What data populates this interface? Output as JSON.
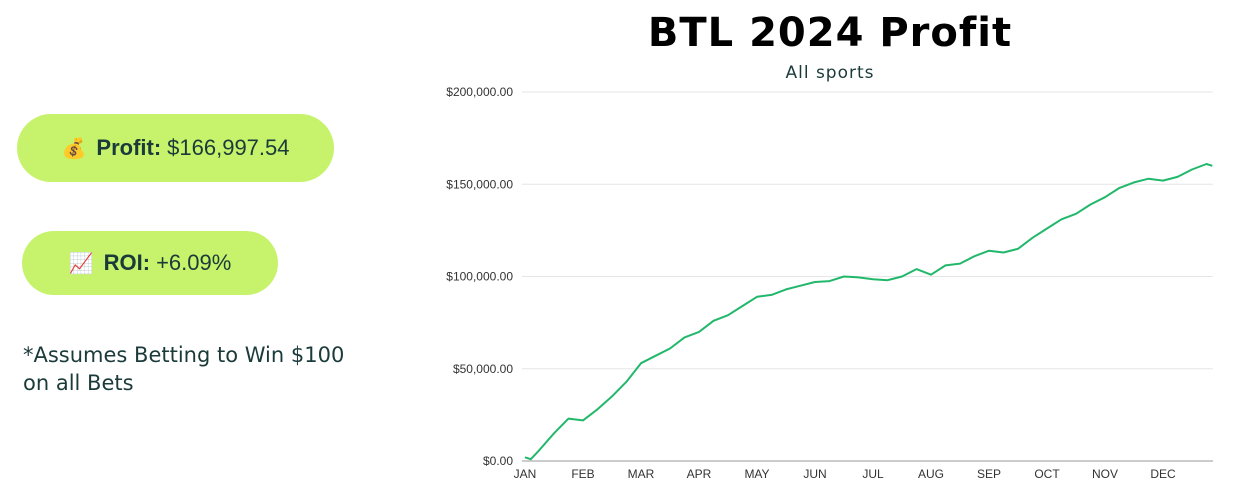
{
  "profit_pill": {
    "emoji": "💰",
    "label": "Profit:",
    "value": "$166,997.54"
  },
  "roi_pill": {
    "emoji": "📈",
    "label": "ROI:",
    "value": "+6.09%"
  },
  "note": "*Assumes Betting to Win $100 on all Bets",
  "colors": {
    "accent": "#c6f36b",
    "line": "#22b86b",
    "text": "#1b3a3a"
  },
  "chart_data": {
    "type": "line",
    "title": "BTL 2024 Profit",
    "subtitle": "All sports",
    "xlabel": "",
    "ylabel": "",
    "categories": [
      "JAN",
      "FEB",
      "MAR",
      "APR",
      "MAY",
      "JUN",
      "JUL",
      "AUG",
      "SEP",
      "OCT",
      "NOV",
      "DEC"
    ],
    "y_ticks": [
      "$0.00",
      "$50,000.00",
      "$100,000.00",
      "$150,000.00",
      "$200,000.00"
    ],
    "ylim": [
      0,
      200000
    ],
    "grid": true,
    "legend": "none",
    "series": [
      {
        "name": "",
        "x": [
          0,
          0.1,
          0.25,
          0.5,
          0.75,
          1.0,
          1.25,
          1.5,
          1.75,
          2.0,
          2.25,
          2.5,
          2.75,
          3.0,
          3.25,
          3.5,
          3.75,
          4.0,
          4.25,
          4.5,
          4.75,
          5.0,
          5.25,
          5.5,
          5.75,
          6.0,
          6.25,
          6.5,
          6.75,
          7.0,
          7.25,
          7.5,
          7.75,
          8.0,
          8.25,
          8.5,
          8.75,
          9.0,
          9.25,
          9.5,
          9.75,
          10.0,
          10.25,
          10.5,
          10.75,
          11.0,
          11.25,
          11.5,
          11.75,
          11.85
        ],
        "values": [
          2000,
          1000,
          6000,
          15000,
          23000,
          22000,
          28000,
          35000,
          43000,
          53000,
          57000,
          61000,
          67000,
          70000,
          76000,
          79000,
          84000,
          89000,
          90000,
          93000,
          95000,
          97000,
          97500,
          100000,
          99500,
          98500,
          98000,
          100000,
          104000,
          101000,
          106000,
          107000,
          111000,
          114000,
          113000,
          115000,
          121000,
          126000,
          131000,
          134000,
          139000,
          143000,
          148000,
          151000,
          153000,
          152000,
          154000,
          158000,
          161000,
          160000
        ]
      }
    ]
  }
}
